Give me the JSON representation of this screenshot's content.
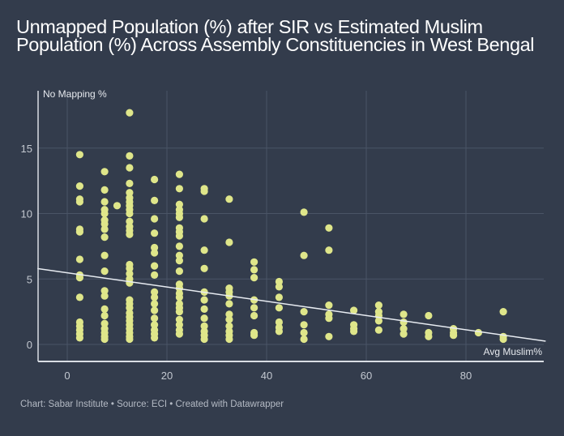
{
  "chart_data": {
    "type": "scatter",
    "title": "Unmapped Population (%) after SIR vs Estimated Muslim Population (%) Across Assembly Constituencies in West Bengal",
    "xlabel": "Avg Muslim%",
    "ylabel": "No Mapping %",
    "xlim": [
      -6,
      96
    ],
    "ylim": [
      -1.3,
      19
    ],
    "xticks": [
      0,
      20,
      40,
      60,
      80
    ],
    "yticks": [
      0,
      5,
      10,
      15
    ],
    "grid": true,
    "colors": {
      "point": "#dfe68a",
      "trend": "#e8ecf2",
      "grid": "#4a5466",
      "axis": "#d9dde3",
      "tick_label": "#c3c8d0"
    },
    "trendline": {
      "x": [
        -6,
        96
      ],
      "y": [
        5.8,
        0.25
      ]
    },
    "points": [
      [
        2.5,
        14.5
      ],
      [
        2.5,
        12.1
      ],
      [
        2.5,
        11.1
      ],
      [
        2.5,
        10.9
      ],
      [
        2.5,
        8.8
      ],
      [
        2.5,
        8.6
      ],
      [
        2.5,
        6.5
      ],
      [
        2.5,
        5.3
      ],
      [
        2.5,
        5.1
      ],
      [
        2.5,
        3.6
      ],
      [
        2.5,
        1.7
      ],
      [
        2.5,
        1.4
      ],
      [
        2.5,
        1.1
      ],
      [
        2.5,
        0.8
      ],
      [
        2.5,
        0.5
      ],
      [
        7.5,
        13.2
      ],
      [
        7.5,
        11.8
      ],
      [
        7.5,
        10.9
      ],
      [
        7.5,
        10.3
      ],
      [
        7.5,
        10.0
      ],
      [
        7.5,
        9.5
      ],
      [
        7.5,
        9.2
      ],
      [
        7.5,
        8.8
      ],
      [
        7.5,
        8.2
      ],
      [
        7.5,
        6.8
      ],
      [
        7.5,
        5.6
      ],
      [
        7.5,
        4.1
      ],
      [
        7.5,
        3.7
      ],
      [
        7.5,
        2.7
      ],
      [
        7.5,
        2.2
      ],
      [
        7.5,
        1.6
      ],
      [
        7.5,
        1.2
      ],
      [
        7.5,
        0.9
      ],
      [
        7.5,
        0.6
      ],
      [
        7.5,
        0.4
      ],
      [
        10,
        10.6
      ],
      [
        12.5,
        17.7
      ],
      [
        12.5,
        14.4
      ],
      [
        12.5,
        13.5
      ],
      [
        12.5,
        12.3
      ],
      [
        12.5,
        11.6
      ],
      [
        12.5,
        11.2
      ],
      [
        12.5,
        10.9
      ],
      [
        12.5,
        10.6
      ],
      [
        12.5,
        10.3
      ],
      [
        12.5,
        10.0
      ],
      [
        12.5,
        9.4
      ],
      [
        12.5,
        9.0
      ],
      [
        12.5,
        8.7
      ],
      [
        12.5,
        8.4
      ],
      [
        12.5,
        6.1
      ],
      [
        12.5,
        5.8
      ],
      [
        12.5,
        5.4
      ],
      [
        12.5,
        5.0
      ],
      [
        12.5,
        4.7
      ],
      [
        12.5,
        3.4
      ],
      [
        12.5,
        3.1
      ],
      [
        12.5,
        2.8
      ],
      [
        12.5,
        2.4
      ],
      [
        12.5,
        2.1
      ],
      [
        12.5,
        1.8
      ],
      [
        12.5,
        1.5
      ],
      [
        12.5,
        1.2
      ],
      [
        12.5,
        0.9
      ],
      [
        12.5,
        0.6
      ],
      [
        12.5,
        0.4
      ],
      [
        17.5,
        12.6
      ],
      [
        17.5,
        11.0
      ],
      [
        17.5,
        9.6
      ],
      [
        17.5,
        8.5
      ],
      [
        17.5,
        7.4
      ],
      [
        17.5,
        7.0
      ],
      [
        17.5,
        6.0
      ],
      [
        17.5,
        5.3
      ],
      [
        17.5,
        4.0
      ],
      [
        17.5,
        3.6
      ],
      [
        17.5,
        3.1
      ],
      [
        17.5,
        2.6
      ],
      [
        17.5,
        2.0
      ],
      [
        17.5,
        1.5
      ],
      [
        17.5,
        1.1
      ],
      [
        17.5,
        0.8
      ],
      [
        17.5,
        0.5
      ],
      [
        22.5,
        13.0
      ],
      [
        22.5,
        11.9
      ],
      [
        22.5,
        10.7
      ],
      [
        22.5,
        10.3
      ],
      [
        22.5,
        10.0
      ],
      [
        22.5,
        9.7
      ],
      [
        22.5,
        8.9
      ],
      [
        22.5,
        8.6
      ],
      [
        22.5,
        8.3
      ],
      [
        22.5,
        7.5
      ],
      [
        22.5,
        6.8
      ],
      [
        22.5,
        6.4
      ],
      [
        22.5,
        5.6
      ],
      [
        22.5,
        4.6
      ],
      [
        22.5,
        4.3
      ],
      [
        22.5,
        3.9
      ],
      [
        22.5,
        3.6
      ],
      [
        22.5,
        3.1
      ],
      [
        22.5,
        2.8
      ],
      [
        22.5,
        2.5
      ],
      [
        22.5,
        1.9
      ],
      [
        22.5,
        1.5
      ],
      [
        22.5,
        1.1
      ],
      [
        22.5,
        0.8
      ],
      [
        27.5,
        11.9
      ],
      [
        27.5,
        11.7
      ],
      [
        27.5,
        9.6
      ],
      [
        27.5,
        7.2
      ],
      [
        27.5,
        5.8
      ],
      [
        27.5,
        4.0
      ],
      [
        27.5,
        3.4
      ],
      [
        27.5,
        2.7
      ],
      [
        27.5,
        2.0
      ],
      [
        27.5,
        1.4
      ],
      [
        27.5,
        1.0
      ],
      [
        27.5,
        0.7
      ],
      [
        27.5,
        0.4
      ],
      [
        32.5,
        11.1
      ],
      [
        32.5,
        7.8
      ],
      [
        32.5,
        4.3
      ],
      [
        32.5,
        4.0
      ],
      [
        32.5,
        3.7
      ],
      [
        32.5,
        3.1
      ],
      [
        32.5,
        2.3
      ],
      [
        32.5,
        1.9
      ],
      [
        32.5,
        1.4
      ],
      [
        32.5,
        1.0
      ],
      [
        32.5,
        0.7
      ],
      [
        32.5,
        0.4
      ],
      [
        37.5,
        6.3
      ],
      [
        37.5,
        5.7
      ],
      [
        37.5,
        5.1
      ],
      [
        37.5,
        3.4
      ],
      [
        37.5,
        2.8
      ],
      [
        37.5,
        2.2
      ],
      [
        37.5,
        0.9
      ],
      [
        37.5,
        0.7
      ],
      [
        42.5,
        4.8
      ],
      [
        42.5,
        4.4
      ],
      [
        42.5,
        3.6
      ],
      [
        42.5,
        2.8
      ],
      [
        42.5,
        1.7
      ],
      [
        42.5,
        1.3
      ],
      [
        42.5,
        1.0
      ],
      [
        47.5,
        10.1
      ],
      [
        47.5,
        6.8
      ],
      [
        47.5,
        2.5
      ],
      [
        47.5,
        1.5
      ],
      [
        47.5,
        0.9
      ],
      [
        47.5,
        0.4
      ],
      [
        52.5,
        8.9
      ],
      [
        52.5,
        7.2
      ],
      [
        52.5,
        3.0
      ],
      [
        52.5,
        2.3
      ],
      [
        52.5,
        2.0
      ],
      [
        52.5,
        0.6
      ],
      [
        57.5,
        2.6
      ],
      [
        57.5,
        1.5
      ],
      [
        57.5,
        1.2
      ],
      [
        57.5,
        1.0
      ],
      [
        62.5,
        3.0
      ],
      [
        62.5,
        2.5
      ],
      [
        62.5,
        2.2
      ],
      [
        62.5,
        1.8
      ],
      [
        62.5,
        1.1
      ],
      [
        67.5,
        2.3
      ],
      [
        67.5,
        1.7
      ],
      [
        67.5,
        1.2
      ],
      [
        67.5,
        0.8
      ],
      [
        72.5,
        2.2
      ],
      [
        72.5,
        0.9
      ],
      [
        72.5,
        0.6
      ],
      [
        77.5,
        1.2
      ],
      [
        77.5,
        0.9
      ],
      [
        77.5,
        0.7
      ],
      [
        82.5,
        0.9
      ],
      [
        87.5,
        2.5
      ],
      [
        87.5,
        0.6
      ],
      [
        87.5,
        0.4
      ]
    ]
  },
  "footer": {
    "credit": "Chart: Sabar Institute • Source: ECI • Created with Datawrapper"
  }
}
